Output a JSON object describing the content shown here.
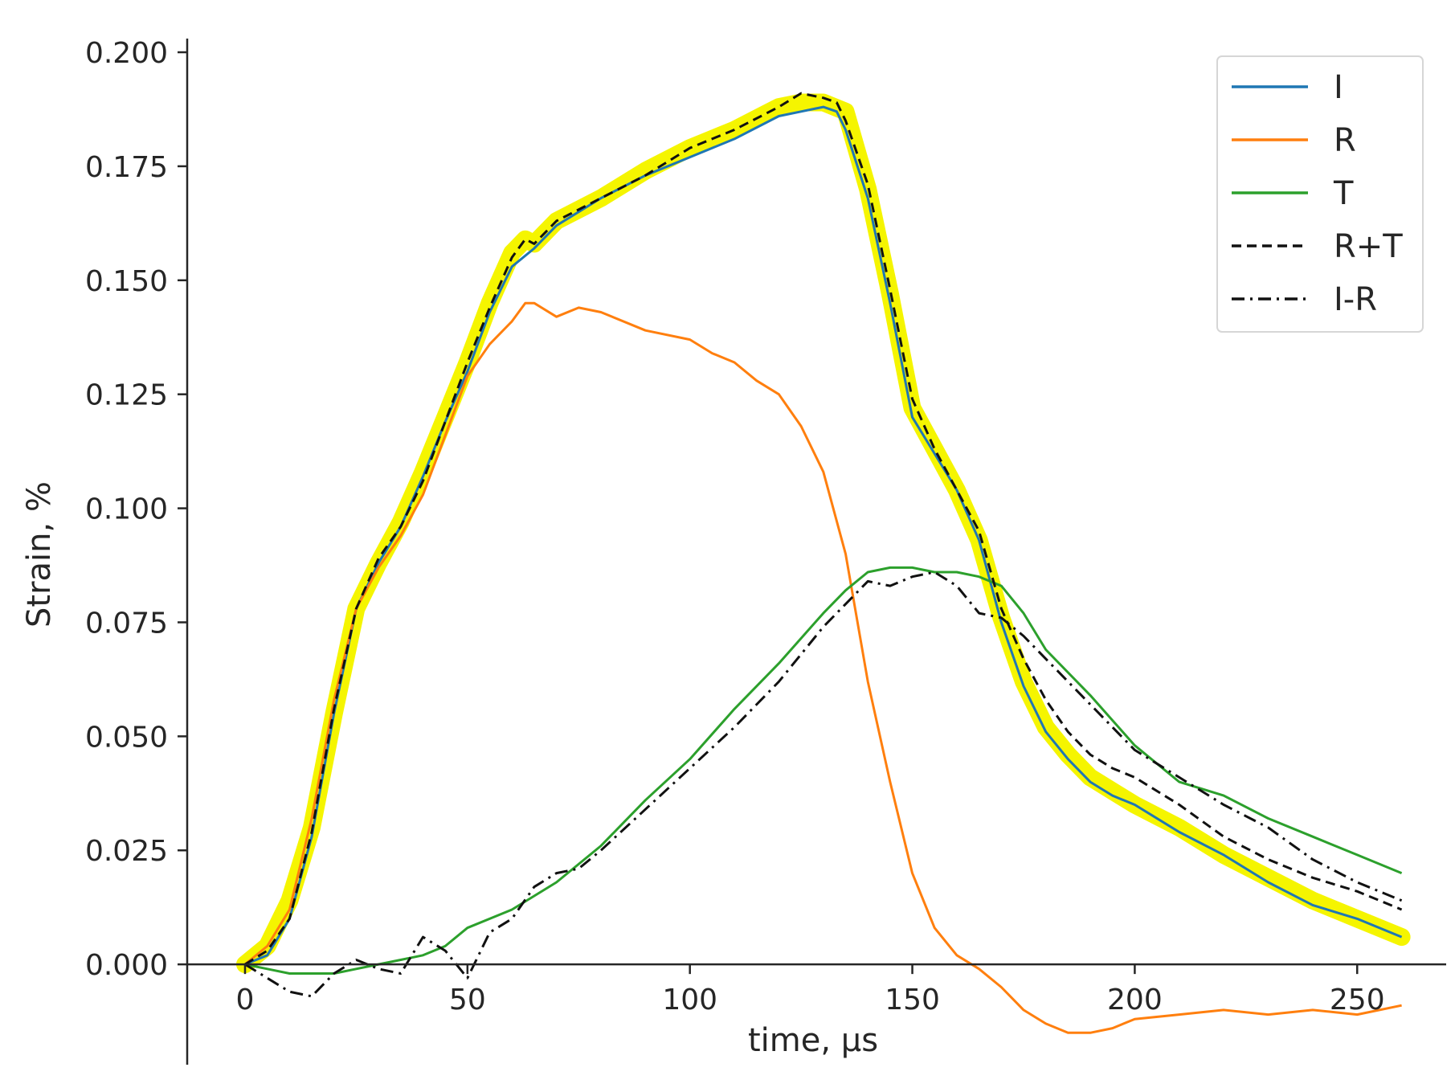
{
  "chart_data": {
    "type": "line",
    "xlabel": "time, μs",
    "ylabel": "Strain, %",
    "xlim": [
      -13,
      270
    ],
    "ylim": [
      -0.022,
      0.203
    ],
    "xticks": [
      0,
      50,
      100,
      150,
      200,
      250
    ],
    "yticks": [
      0.0,
      0.025,
      0.05,
      0.075,
      0.1,
      0.125,
      0.15,
      0.175,
      0.2
    ],
    "xtick_labels": [
      "0",
      "50",
      "100",
      "150",
      "200",
      "250"
    ],
    "ytick_labels": [
      "0.000",
      "0.025",
      "0.050",
      "0.075",
      "0.100",
      "0.125",
      "0.150",
      "0.175",
      "0.200"
    ],
    "grid": false,
    "legend_position": "top-right",
    "highlight_band": {
      "color": "#f5f500",
      "x": [
        0,
        5,
        10,
        15,
        20,
        25,
        30,
        35,
        40,
        45,
        50,
        55,
        60,
        63,
        65,
        70,
        80,
        90,
        100,
        110,
        120,
        125,
        130,
        135,
        140,
        145,
        150,
        155,
        160,
        165,
        170,
        175,
        180,
        185,
        190,
        195,
        200,
        210,
        220,
        230,
        240,
        250,
        260
      ],
      "values": [
        0.0,
        0.004,
        0.014,
        0.03,
        0.055,
        0.078,
        0.088,
        0.097,
        0.108,
        0.12,
        0.132,
        0.145,
        0.156,
        0.159,
        0.158,
        0.163,
        0.168,
        0.174,
        0.179,
        0.183,
        0.188,
        0.189,
        0.189,
        0.187,
        0.17,
        0.147,
        0.122,
        0.113,
        0.104,
        0.093,
        0.076,
        0.062,
        0.052,
        0.046,
        0.041,
        0.038,
        0.035,
        0.03,
        0.024,
        0.019,
        0.014,
        0.01,
        0.006
      ]
    },
    "series": [
      {
        "name": "I",
        "color": "#1f77b4",
        "dash": "solid",
        "x": [
          0,
          5,
          10,
          15,
          20,
          25,
          30,
          35,
          40,
          45,
          50,
          55,
          60,
          65,
          70,
          80,
          90,
          100,
          110,
          120,
          125,
          130,
          133,
          135,
          140,
          145,
          150,
          155,
          160,
          165,
          170,
          175,
          180,
          185,
          190,
          195,
          200,
          210,
          220,
          230,
          240,
          250,
          260
        ],
        "values": [
          0.0,
          0.002,
          0.01,
          0.028,
          0.055,
          0.078,
          0.088,
          0.096,
          0.107,
          0.119,
          0.13,
          0.143,
          0.153,
          0.157,
          0.162,
          0.168,
          0.173,
          0.177,
          0.181,
          0.186,
          0.187,
          0.188,
          0.187,
          0.183,
          0.168,
          0.145,
          0.12,
          0.112,
          0.104,
          0.093,
          0.075,
          0.061,
          0.051,
          0.045,
          0.04,
          0.037,
          0.035,
          0.029,
          0.024,
          0.018,
          0.013,
          0.01,
          0.006
        ]
      },
      {
        "name": "R",
        "color": "#ff7f0e",
        "dash": "solid",
        "x": [
          0,
          5,
          10,
          15,
          20,
          25,
          30,
          35,
          40,
          45,
          50,
          55,
          60,
          63,
          65,
          70,
          75,
          80,
          90,
          100,
          105,
          110,
          115,
          120,
          125,
          130,
          135,
          140,
          145,
          150,
          155,
          160,
          165,
          170,
          175,
          180,
          185,
          190,
          195,
          200,
          210,
          220,
          230,
          240,
          250,
          260
        ],
        "values": [
          0.0,
          0.004,
          0.012,
          0.032,
          0.058,
          0.078,
          0.087,
          0.094,
          0.103,
          0.116,
          0.129,
          0.136,
          0.141,
          0.145,
          0.145,
          0.142,
          0.144,
          0.143,
          0.139,
          0.137,
          0.134,
          0.132,
          0.128,
          0.125,
          0.118,
          0.108,
          0.09,
          0.062,
          0.04,
          0.02,
          0.008,
          0.002,
          -0.001,
          -0.005,
          -0.01,
          -0.013,
          -0.015,
          -0.015,
          -0.014,
          -0.012,
          -0.011,
          -0.01,
          -0.011,
          -0.01,
          -0.011,
          -0.009
        ]
      },
      {
        "name": "T",
        "color": "#2ca02c",
        "dash": "solid",
        "x": [
          0,
          5,
          10,
          15,
          20,
          25,
          30,
          35,
          40,
          45,
          50,
          60,
          70,
          80,
          90,
          100,
          110,
          120,
          130,
          135,
          140,
          145,
          150,
          155,
          160,
          165,
          170,
          175,
          180,
          190,
          200,
          210,
          220,
          230,
          240,
          250,
          260
        ],
        "values": [
          0.0,
          -0.001,
          -0.002,
          -0.002,
          -0.002,
          -0.001,
          0.0,
          0.001,
          0.002,
          0.004,
          0.008,
          0.012,
          0.018,
          0.026,
          0.036,
          0.045,
          0.056,
          0.066,
          0.077,
          0.082,
          0.086,
          0.087,
          0.087,
          0.086,
          0.086,
          0.085,
          0.083,
          0.077,
          0.069,
          0.059,
          0.048,
          0.04,
          0.037,
          0.032,
          0.028,
          0.024,
          0.02
        ]
      },
      {
        "name": "R+T",
        "color": "#111111",
        "dash": "dashed",
        "x": [
          0,
          5,
          10,
          15,
          20,
          25,
          30,
          35,
          40,
          45,
          50,
          55,
          60,
          63,
          65,
          70,
          80,
          90,
          100,
          110,
          120,
          125,
          130,
          133,
          135,
          140,
          145,
          150,
          155,
          160,
          165,
          170,
          175,
          180,
          185,
          190,
          195,
          200,
          210,
          220,
          230,
          240,
          250,
          260
        ],
        "values": [
          0.0,
          0.003,
          0.01,
          0.029,
          0.056,
          0.078,
          0.089,
          0.096,
          0.106,
          0.119,
          0.132,
          0.144,
          0.155,
          0.159,
          0.158,
          0.163,
          0.168,
          0.173,
          0.179,
          0.183,
          0.188,
          0.191,
          0.19,
          0.189,
          0.185,
          0.171,
          0.148,
          0.124,
          0.113,
          0.104,
          0.095,
          0.078,
          0.067,
          0.058,
          0.051,
          0.046,
          0.043,
          0.041,
          0.035,
          0.028,
          0.023,
          0.019,
          0.016,
          0.012
        ]
      },
      {
        "name": "I-R",
        "color": "#111111",
        "dash": "dashdot",
        "x": [
          0,
          5,
          10,
          15,
          20,
          25,
          30,
          35,
          40,
          45,
          50,
          55,
          60,
          65,
          70,
          75,
          80,
          90,
          100,
          110,
          120,
          130,
          140,
          145,
          150,
          155,
          160,
          165,
          170,
          175,
          180,
          190,
          200,
          210,
          220,
          230,
          240,
          250,
          260
        ],
        "values": [
          0.0,
          -0.003,
          -0.006,
          -0.007,
          -0.002,
          0.001,
          -0.001,
          -0.002,
          0.006,
          0.003,
          -0.003,
          0.007,
          0.01,
          0.017,
          0.02,
          0.021,
          0.025,
          0.034,
          0.043,
          0.052,
          0.062,
          0.074,
          0.084,
          0.083,
          0.085,
          0.086,
          0.083,
          0.077,
          0.076,
          0.072,
          0.067,
          0.057,
          0.047,
          0.041,
          0.035,
          0.03,
          0.023,
          0.018,
          0.014
        ]
      }
    ]
  }
}
